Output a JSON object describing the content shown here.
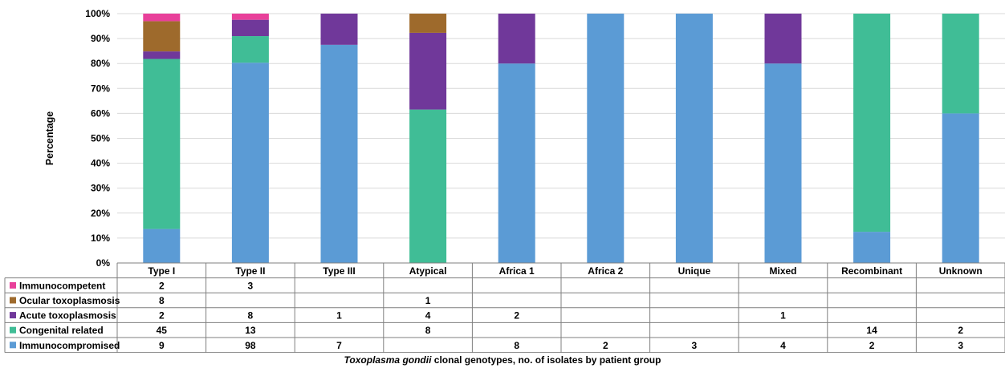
{
  "chart_data": {
    "type": "bar",
    "stacked": true,
    "normalized": true,
    "ylabel": "Percentage",
    "xlabel_italic": "Toxoplasma gondii",
    "xlabel_rest": " clonal genotypes, no. of isolates by patient  group",
    "ylim": [
      0,
      100
    ],
    "yticks": [
      "0%",
      "10%",
      "20%",
      "30%",
      "40%",
      "50%",
      "60%",
      "70%",
      "80%",
      "90%",
      "100%"
    ],
    "grid": true,
    "categories": [
      "Type I",
      "Type II",
      "Type III",
      "Atypical",
      "Africa 1",
      "Africa 2",
      "Unique",
      "Mixed",
      "Recombinant",
      "Unknown"
    ],
    "series": [
      {
        "name": "Immunocompromised",
        "color": "#5b9bd5",
        "values": [
          9,
          98,
          7,
          null,
          8,
          2,
          3,
          4,
          2,
          3
        ]
      },
      {
        "name": "Congenital related",
        "color": "#40bd96",
        "values": [
          45,
          13,
          null,
          8,
          null,
          null,
          null,
          null,
          14,
          2
        ]
      },
      {
        "name": "Acute toxoplasmosis",
        "color": "#70389a",
        "values": [
          2,
          8,
          1,
          4,
          2,
          null,
          null,
          1,
          null,
          null
        ]
      },
      {
        "name": "Ocular toxoplasmosis",
        "color": "#9e6a2c",
        "values": [
          8,
          null,
          null,
          1,
          null,
          null,
          null,
          null,
          null,
          null
        ]
      },
      {
        "name": "Immunocompetent",
        "color": "#e8409a",
        "values": [
          2,
          3,
          null,
          null,
          null,
          null,
          null,
          null,
          null,
          null
        ]
      }
    ],
    "table_row_order": [
      "Immunocompetent",
      "Ocular toxoplasmosis",
      "Acute toxoplasmosis",
      "Congenital related",
      "Immunocompromised"
    ]
  }
}
